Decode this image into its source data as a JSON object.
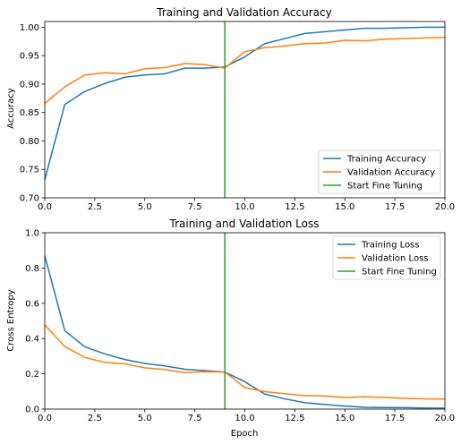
{
  "chart_data": [
    {
      "type": "line",
      "title": "Training and Validation Accuracy",
      "xlabel": "",
      "ylabel": "Accuracy",
      "xlim": [
        0,
        20
      ],
      "ylim": [
        0.7,
        1.01
      ],
      "x_ticks": [
        0,
        2.5,
        5,
        7.5,
        10,
        12.5,
        15,
        17.5,
        20
      ],
      "x_tick_labels": [
        "0.0",
        "2.5",
        "5.0",
        "7.5",
        "10.0",
        "12.5",
        "15.0",
        "17.5",
        "20.0"
      ],
      "y_ticks": [
        0.7,
        0.75,
        0.8,
        0.85,
        0.9,
        0.95,
        1.0
      ],
      "y_tick_labels": [
        "0.70",
        "0.75",
        "0.80",
        "0.85",
        "0.90",
        "0.95",
        "1.00"
      ],
      "grid": false,
      "legend_position": "lower-right",
      "x": [
        0,
        1,
        2,
        3,
        4,
        5,
        6,
        7,
        8,
        9,
        10,
        11,
        12,
        13,
        14,
        15,
        16,
        17,
        18,
        19,
        20
      ],
      "series": [
        {
          "name": "Training Accuracy",
          "color": "#1f77b4",
          "values": [
            0.732,
            0.864,
            0.887,
            0.901,
            0.912,
            0.916,
            0.918,
            0.928,
            0.928,
            0.93,
            0.948,
            0.971,
            0.98,
            0.989,
            0.992,
            0.995,
            0.998,
            0.998,
            0.999,
            1.0,
            1.0
          ]
        },
        {
          "name": "Validation Accuracy",
          "color": "#ff7f0e",
          "values": [
            0.866,
            0.895,
            0.916,
            0.92,
            0.918,
            0.927,
            0.929,
            0.936,
            0.934,
            0.928,
            0.957,
            0.964,
            0.967,
            0.971,
            0.972,
            0.977,
            0.976,
            0.979,
            0.98,
            0.981,
            0.982
          ]
        }
      ],
      "vlines": [
        {
          "name": "Start Fine Tuning",
          "x": 9,
          "color": "#2ca02c"
        }
      ]
    },
    {
      "type": "line",
      "title": "Training and Validation Loss",
      "xlabel": "Epoch",
      "ylabel": "Cross Entropy",
      "xlim": [
        0,
        20
      ],
      "ylim": [
        0,
        1.0
      ],
      "x_ticks": [
        0,
        2.5,
        5,
        7.5,
        10,
        12.5,
        15,
        17.5,
        20
      ],
      "x_tick_labels": [
        "0.0",
        "2.5",
        "5.0",
        "7.5",
        "10.0",
        "12.5",
        "15.0",
        "17.5",
        "20.0"
      ],
      "y_ticks": [
        0,
        0.2,
        0.4,
        0.6,
        0.8,
        1.0
      ],
      "y_tick_labels": [
        "0.0",
        "0.2",
        "0.4",
        "0.6",
        "0.8",
        "1.0"
      ],
      "grid": false,
      "legend_position": "upper-right",
      "x": [
        0,
        1,
        2,
        3,
        4,
        5,
        6,
        7,
        8,
        9,
        10,
        11,
        12,
        13,
        14,
        15,
        16,
        17,
        18,
        19,
        20
      ],
      "series": [
        {
          "name": "Training Loss",
          "color": "#1f77b4",
          "values": [
            0.87,
            0.445,
            0.353,
            0.313,
            0.281,
            0.259,
            0.245,
            0.226,
            0.218,
            0.21,
            0.155,
            0.085,
            0.058,
            0.036,
            0.026,
            0.017,
            0.01,
            0.009,
            0.008,
            0.006,
            0.005
          ]
        },
        {
          "name": "Validation Loss",
          "color": "#ff7f0e",
          "values": [
            0.478,
            0.355,
            0.293,
            0.265,
            0.257,
            0.234,
            0.224,
            0.207,
            0.212,
            0.21,
            0.122,
            0.099,
            0.087,
            0.076,
            0.074,
            0.066,
            0.07,
            0.066,
            0.061,
            0.058,
            0.057
          ]
        }
      ],
      "vlines": [
        {
          "name": "Start Fine Tuning",
          "x": 9,
          "color": "#2ca02c"
        }
      ]
    }
  ]
}
